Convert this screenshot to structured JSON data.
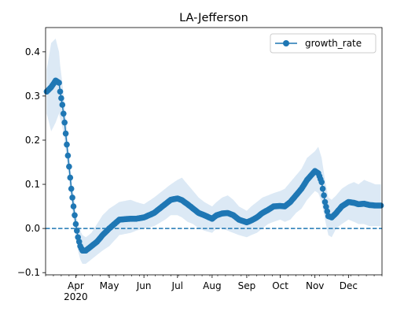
{
  "chart_data": {
    "type": "line",
    "title": "LA-Jefferson",
    "xlabel": "",
    "ylabel": "",
    "xlim": [
      "2020-03-05",
      "2020-12-31"
    ],
    "ylim": [
      -0.105,
      0.455
    ],
    "x_tick_labels": [
      {
        "date": "2020-04-01",
        "label": "Apr",
        "sublabel": "2020"
      },
      {
        "date": "2020-05-01",
        "label": "May"
      },
      {
        "date": "2020-06-01",
        "label": "Jun"
      },
      {
        "date": "2020-07-01",
        "label": "Jul"
      },
      {
        "date": "2020-08-01",
        "label": "Aug"
      },
      {
        "date": "2020-09-01",
        "label": "Sep"
      },
      {
        "date": "2020-10-01",
        "label": "Oct"
      },
      {
        "date": "2020-11-01",
        "label": "Nov"
      },
      {
        "date": "2020-12-01",
        "label": "Dec"
      }
    ],
    "y_ticks": [
      -0.1,
      0.0,
      0.1,
      0.2,
      0.3,
      0.4
    ],
    "y_tick_labels": [
      "−0.1",
      "0.0",
      "0.1",
      "0.2",
      "0.3",
      "0.4"
    ],
    "grid": false,
    "legend": {
      "position": "top-right",
      "entries": [
        "growth_rate"
      ]
    },
    "reference_line": {
      "y": 0.0,
      "style": "dashed",
      "color": "#1f77b4"
    },
    "colors": {
      "series": "#1f77b4",
      "band": "#dce9f5"
    },
    "series": [
      {
        "name": "growth_rate",
        "x": [
          "2020-03-06",
          "2020-03-10",
          "2020-03-14",
          "2020-03-17",
          "2020-03-18",
          "2020-03-20",
          "2020-03-22",
          "2020-03-24",
          "2020-03-26",
          "2020-03-28",
          "2020-03-30",
          "2020-04-01",
          "2020-04-03",
          "2020-04-05",
          "2020-04-07",
          "2020-04-10",
          "2020-04-15",
          "2020-04-20",
          "2020-04-25",
          "2020-05-01",
          "2020-05-10",
          "2020-05-20",
          "2020-05-25",
          "2020-06-01",
          "2020-06-10",
          "2020-06-20",
          "2020-06-25",
          "2020-07-01",
          "2020-07-05",
          "2020-07-10",
          "2020-07-15",
          "2020-07-20",
          "2020-07-25",
          "2020-08-01",
          "2020-08-05",
          "2020-08-10",
          "2020-08-15",
          "2020-08-20",
          "2020-08-25",
          "2020-09-01",
          "2020-09-05",
          "2020-09-10",
          "2020-09-15",
          "2020-09-20",
          "2020-09-25",
          "2020-10-01",
          "2020-10-05",
          "2020-10-10",
          "2020-10-15",
          "2020-10-20",
          "2020-10-25",
          "2020-11-01",
          "2020-11-04",
          "2020-11-07",
          "2020-11-10",
          "2020-11-13",
          "2020-11-16",
          "2020-11-20",
          "2020-11-25",
          "2020-12-01",
          "2020-12-06",
          "2020-12-10",
          "2020-12-15",
          "2020-12-20",
          "2020-12-25",
          "2020-12-30"
        ],
        "values": [
          0.31,
          0.32,
          0.335,
          0.33,
          0.31,
          0.28,
          0.24,
          0.19,
          0.14,
          0.09,
          0.05,
          0.01,
          -0.02,
          -0.04,
          -0.05,
          -0.05,
          -0.04,
          -0.03,
          -0.015,
          0.0,
          0.02,
          0.022,
          0.022,
          0.025,
          0.035,
          0.055,
          0.065,
          0.068,
          0.064,
          0.055,
          0.045,
          0.035,
          0.03,
          0.022,
          0.03,
          0.034,
          0.035,
          0.03,
          0.02,
          0.014,
          0.018,
          0.025,
          0.035,
          0.042,
          0.05,
          0.051,
          0.05,
          0.06,
          0.075,
          0.09,
          0.11,
          0.13,
          0.125,
          0.105,
          0.06,
          0.028,
          0.025,
          0.035,
          0.05,
          0.06,
          0.058,
          0.055,
          0.056,
          0.053,
          0.052,
          0.052
        ],
        "band_upper": [
          0.36,
          0.42,
          0.43,
          0.4,
          0.37,
          0.33,
          0.28,
          0.23,
          0.17,
          0.12,
          0.08,
          0.04,
          0.01,
          -0.005,
          -0.015,
          -0.02,
          -0.01,
          0.01,
          0.03,
          0.045,
          0.06,
          0.065,
          0.06,
          0.055,
          0.07,
          0.09,
          0.1,
          0.11,
          0.115,
          0.1,
          0.085,
          0.07,
          0.06,
          0.05,
          0.06,
          0.07,
          0.075,
          0.065,
          0.05,
          0.04,
          0.05,
          0.06,
          0.07,
          0.075,
          0.08,
          0.085,
          0.09,
          0.105,
          0.12,
          0.135,
          0.16,
          0.175,
          0.185,
          0.16,
          0.11,
          0.07,
          0.065,
          0.075,
          0.09,
          0.1,
          0.105,
          0.1,
          0.11,
          0.105,
          0.1,
          0.1
        ],
        "band_lower": [
          0.26,
          0.22,
          0.24,
          0.26,
          0.25,
          0.23,
          0.2,
          0.15,
          0.11,
          0.06,
          0.02,
          -0.02,
          -0.05,
          -0.07,
          -0.08,
          -0.08,
          -0.07,
          -0.06,
          -0.05,
          -0.04,
          -0.015,
          -0.01,
          -0.005,
          0.0,
          0.005,
          0.02,
          0.03,
          0.03,
          0.025,
          0.015,
          0.01,
          0.0,
          -0.005,
          -0.01,
          0.0,
          0.0,
          -0.005,
          -0.01,
          -0.015,
          -0.02,
          -0.015,
          -0.01,
          0.0,
          0.01,
          0.015,
          0.02,
          0.015,
          0.02,
          0.035,
          0.045,
          0.065,
          0.085,
          0.08,
          0.06,
          0.02,
          -0.015,
          -0.02,
          0.0,
          0.01,
          0.02,
          0.015,
          0.01,
          0.01,
          0.005,
          0.005,
          0.005
        ]
      }
    ]
  }
}
